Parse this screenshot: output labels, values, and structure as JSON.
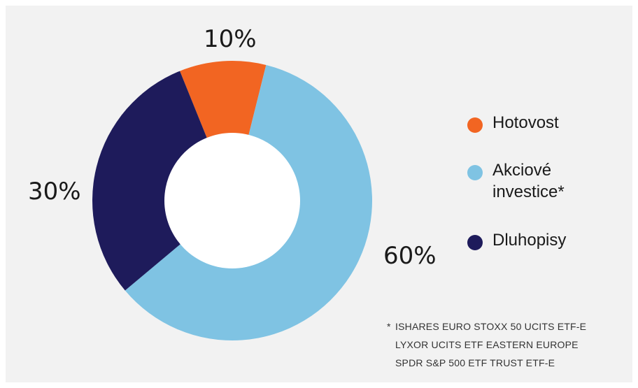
{
  "chart_data": {
    "type": "pie",
    "categories": [
      "Hotovost",
      "Akciové investice*",
      "Dluhopisy"
    ],
    "values": [
      10,
      60,
      30
    ],
    "value_labels": [
      "10%",
      "60%",
      "30%"
    ],
    "colors": [
      "#f26522",
      "#7fc3e3",
      "#1e1b5b"
    ],
    "hole": "donut",
    "legend_position": "right"
  },
  "legend": {
    "items": [
      {
        "label": "Hotovost",
        "color": "#f26522"
      },
      {
        "label": "Akciové\ninvestice*",
        "color": "#7fc3e3"
      },
      {
        "label": "Dluhopisy",
        "color": "#1e1b5b"
      }
    ]
  },
  "footnote": {
    "marker": "*",
    "lines": [
      "ISHARES EURO STOXX 50 UCITS ETF-E",
      "LYXOR UCITS ETF EASTERN EUROPE",
      "SPDR S&P 500 ETF TRUST ETF-E"
    ]
  },
  "colors": {
    "panel_bg": "#f2f2f2",
    "page_bg": "#ffffff",
    "hole": "#ffffff"
  }
}
